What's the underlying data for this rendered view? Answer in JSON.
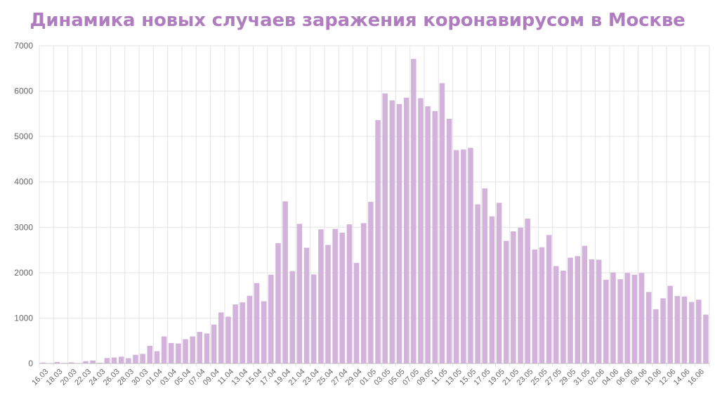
{
  "colors": {
    "title": "#b07cc0",
    "bar": "#d3b3db",
    "grid": "#e3e3e3",
    "tick_text": "#666666"
  },
  "chart_data": {
    "type": "bar",
    "title": "Динамика новых случаев заражения коронавирусом в Москве",
    "xlabel": "",
    "ylabel": "",
    "ylim": [
      0,
      7000
    ],
    "yticks": [
      0,
      1000,
      2000,
      3000,
      4000,
      5000,
      6000,
      7000
    ],
    "grid": true,
    "legend": "none",
    "categories": [
      "16.03",
      "17.03",
      "18.03",
      "19.03",
      "20.03",
      "21.03",
      "22.03",
      "23.03",
      "24.03",
      "25.03",
      "26.03",
      "27.03",
      "28.03",
      "29.03",
      "30.03",
      "31.03",
      "01.04",
      "02.04",
      "03.04",
      "04.04",
      "05.04",
      "06.04",
      "07.04",
      "08.04",
      "09.04",
      "10.04",
      "11.04",
      "12.04",
      "13.04",
      "14.04",
      "15.04",
      "16.04",
      "17.04",
      "18.04",
      "19.04",
      "20.04",
      "21.04",
      "22.04",
      "23.04",
      "24.04",
      "25.04",
      "26.04",
      "27.04",
      "28.04",
      "29.04",
      "30.04",
      "01.05",
      "02.05",
      "03.05",
      "04.05",
      "05.05",
      "06.05",
      "07.05",
      "08.05",
      "09.05",
      "10.05",
      "11.05",
      "12.05",
      "13.05",
      "14.05",
      "15.05",
      "16.05",
      "17.05",
      "18.05",
      "19.05",
      "20.05",
      "21.05",
      "22.05",
      "23.05",
      "24.05",
      "25.05",
      "26.05",
      "27.05",
      "28.05",
      "29.05",
      "30.05",
      "31.05",
      "01.06",
      "02.06",
      "03.06",
      "04.06",
      "05.06",
      "06.06",
      "07.06",
      "08.06",
      "09.06",
      "10.06",
      "11.06",
      "12.06",
      "13.06",
      "14.06",
      "15.06",
      "16.06",
      "17.06"
    ],
    "tick_labels": [
      "16.03",
      "18.03",
      "20.03",
      "22.03",
      "24.03",
      "26.03",
      "28.03",
      "30.03",
      "01.04",
      "03.04",
      "05.04",
      "07.04",
      "09.04",
      "11.04",
      "13.04",
      "15.04",
      "17.04",
      "19.04",
      "21.04",
      "23.04",
      "25.04",
      "27.04",
      "29.04",
      "01.05",
      "03.05",
      "05.05",
      "07.05",
      "09.05",
      "11.05",
      "13.05",
      "15.05",
      "17.05",
      "19.05",
      "21.05",
      "23.05",
      "25.05",
      "27.05",
      "29.05",
      "31.05",
      "02.06",
      "04.06",
      "06.06",
      "08.06",
      "10.06",
      "12.06",
      "14.06",
      "16.06"
    ],
    "values": [
      20,
      6,
      33,
      12,
      25,
      6,
      50,
      65,
      15,
      120,
      130,
      150,
      115,
      190,
      210,
      390,
      270,
      595,
      450,
      440,
      535,
      595,
      695,
      660,
      855,
      1125,
      1030,
      1300,
      1345,
      1490,
      1770,
      1370,
      1955,
      2650,
      3570,
      2035,
      3075,
      2550,
      1960,
      2955,
      2610,
      2965,
      2880,
      3065,
      2215,
      3090,
      3560,
      5360,
      5950,
      5795,
      5715,
      5855,
      6710,
      5845,
      5665,
      5560,
      6175,
      5390,
      4700,
      4715,
      4750,
      3505,
      3855,
      3240,
      3540,
      2700,
      2910,
      2990,
      3190,
      2510,
      2560,
      2830,
      2145,
      2045,
      2330,
      2365,
      2590,
      2295,
      2285,
      1845,
      2005,
      1855,
      1995,
      1955,
      1995,
      1575,
      1195,
      1435,
      1710,
      1485,
      1475,
      1355,
      1405,
      1075
    ]
  }
}
